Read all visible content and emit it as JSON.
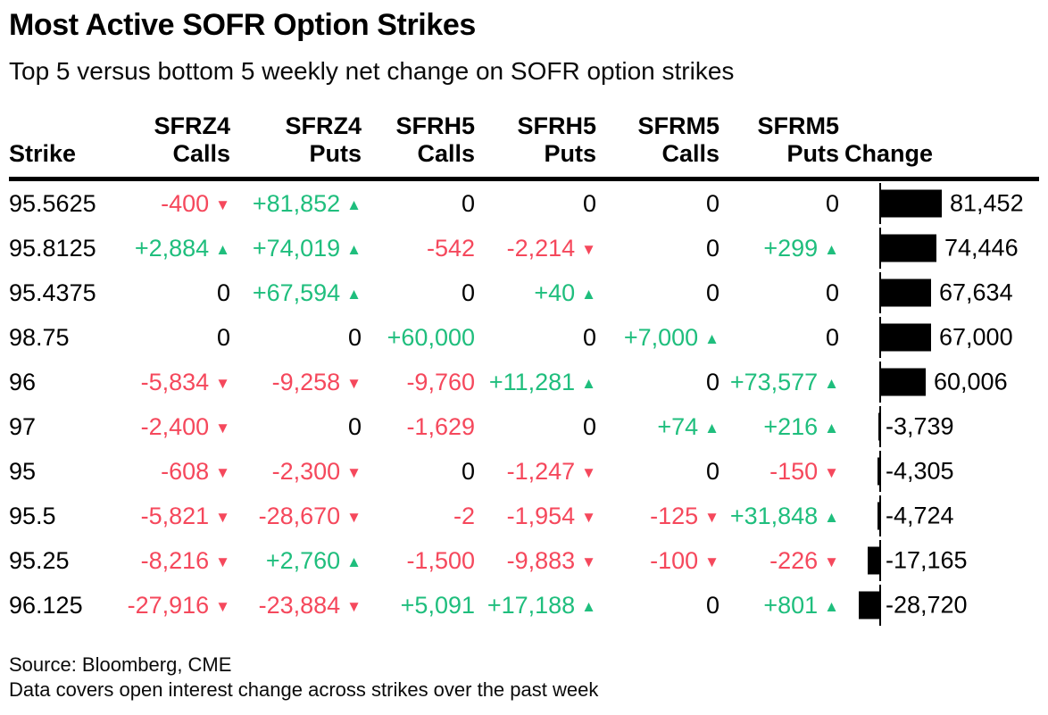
{
  "title": "Most Active SOFR Option Strikes",
  "subtitle": "Top 5 versus bottom 5 weekly net change on SOFR option strikes",
  "header": {
    "strike": "Strike",
    "change": "Change",
    "contracts": [
      {
        "symbol": "SFRZ4",
        "type": "Calls"
      },
      {
        "symbol": "SFRZ4",
        "type": "Puts"
      },
      {
        "symbol": "SFRH5",
        "type": "Calls"
      },
      {
        "symbol": "SFRH5",
        "type": "Puts"
      },
      {
        "symbol": "SFRM5",
        "type": "Calls"
      },
      {
        "symbol": "SFRM5",
        "type": "Puts"
      }
    ]
  },
  "colors": {
    "positive": "#1FBE7D",
    "negative": "#F5485C",
    "neutral": "#000000",
    "bar": "#000000"
  },
  "arrows": {
    "up": "▲",
    "down": "▼"
  },
  "rows": [
    {
      "strike": "95.5625",
      "cells": [
        {
          "v": "-400",
          "arrow": "down"
        },
        {
          "v": "+81,852",
          "arrow": "up"
        },
        {
          "v": "0"
        },
        {
          "v": "0"
        },
        {
          "v": "0"
        },
        {
          "v": "0"
        }
      ],
      "change": 81452,
      "change_label": "81,452"
    },
    {
      "strike": "95.8125",
      "cells": [
        {
          "v": "+2,884",
          "arrow": "up"
        },
        {
          "v": "+74,019",
          "arrow": "up"
        },
        {
          "v": "-542"
        },
        {
          "v": "-2,214",
          "arrow": "down"
        },
        {
          "v": "0"
        },
        {
          "v": "+299",
          "arrow": "up"
        }
      ],
      "change": 74446,
      "change_label": "74,446"
    },
    {
      "strike": "95.4375",
      "cells": [
        {
          "v": "0"
        },
        {
          "v": "+67,594",
          "arrow": "up"
        },
        {
          "v": "0"
        },
        {
          "v": "+40",
          "arrow": "up"
        },
        {
          "v": "0"
        },
        {
          "v": "0"
        }
      ],
      "change": 67634,
      "change_label": "67,634"
    },
    {
      "strike": "98.75",
      "cells": [
        {
          "v": "0"
        },
        {
          "v": "0"
        },
        {
          "v": "+60,000"
        },
        {
          "v": "0"
        },
        {
          "v": "+7,000",
          "arrow": "up"
        },
        {
          "v": "0"
        }
      ],
      "change": 67000,
      "change_label": "67,000"
    },
    {
      "strike": "96",
      "cells": [
        {
          "v": "-5,834",
          "arrow": "down"
        },
        {
          "v": "-9,258",
          "arrow": "down"
        },
        {
          "v": "-9,760"
        },
        {
          "v": "+11,281",
          "arrow": "up"
        },
        {
          "v": "0"
        },
        {
          "v": "+73,577",
          "arrow": "up"
        }
      ],
      "change": 60006,
      "change_label": "60,006"
    },
    {
      "strike": "97",
      "cells": [
        {
          "v": "-2,400",
          "arrow": "down"
        },
        {
          "v": "0"
        },
        {
          "v": "-1,629"
        },
        {
          "v": "0"
        },
        {
          "v": "+74",
          "arrow": "up"
        },
        {
          "v": "+216",
          "arrow": "up"
        }
      ],
      "change": -3739,
      "change_label": "-3,739"
    },
    {
      "strike": "95",
      "cells": [
        {
          "v": "-608",
          "arrow": "down"
        },
        {
          "v": "-2,300",
          "arrow": "down"
        },
        {
          "v": "0"
        },
        {
          "v": "-1,247",
          "arrow": "down"
        },
        {
          "v": "0"
        },
        {
          "v": "-150",
          "arrow": "down"
        }
      ],
      "change": -4305,
      "change_label": "-4,305"
    },
    {
      "strike": "95.5",
      "cells": [
        {
          "v": "-5,821",
          "arrow": "down"
        },
        {
          "v": "-28,670",
          "arrow": "down"
        },
        {
          "v": "-2"
        },
        {
          "v": "-1,954",
          "arrow": "down"
        },
        {
          "v": "-125",
          "arrow": "down"
        },
        {
          "v": "+31,848",
          "arrow": "up"
        }
      ],
      "change": -4724,
      "change_label": "-4,724"
    },
    {
      "strike": "95.25",
      "cells": [
        {
          "v": "-8,216",
          "arrow": "down"
        },
        {
          "v": "+2,760",
          "arrow": "up"
        },
        {
          "v": "-1,500"
        },
        {
          "v": "-9,883",
          "arrow": "down"
        },
        {
          "v": "-100",
          "arrow": "down"
        },
        {
          "v": "-226",
          "arrow": "down"
        }
      ],
      "change": -17165,
      "change_label": "-17,165"
    },
    {
      "strike": "96.125",
      "cells": [
        {
          "v": "-27,916",
          "arrow": "down"
        },
        {
          "v": "-23,884",
          "arrow": "down"
        },
        {
          "v": "+5,091"
        },
        {
          "v": "+17,188",
          "arrow": "up"
        },
        {
          "v": "0"
        },
        {
          "v": "+801",
          "arrow": "up"
        }
      ],
      "change": -28720,
      "change_label": "-28,720"
    }
  ],
  "footer": {
    "source": "Source: Bloomberg, CME",
    "note": "Data covers open interest change across strikes over the past week"
  },
  "chart_data": {
    "type": "table",
    "title": "Most Active SOFR Option Strikes",
    "subtitle": "Top 5 versus bottom 5 weekly net change on SOFR option strikes",
    "columns": [
      "Strike",
      "SFRZ4 Calls",
      "SFRZ4 Puts",
      "SFRH5 Calls",
      "SFRH5 Puts",
      "SFRM5 Calls",
      "SFRM5 Puts",
      "Change"
    ],
    "rows": [
      [
        "95.5625",
        -400,
        81852,
        0,
        0,
        0,
        0,
        81452
      ],
      [
        "95.8125",
        2884,
        74019,
        -542,
        -2214,
        0,
        299,
        74446
      ],
      [
        "95.4375",
        0,
        67594,
        0,
        40,
        0,
        0,
        67634
      ],
      [
        "98.75",
        0,
        0,
        60000,
        0,
        7000,
        0,
        67000
      ],
      [
        "96",
        -5834,
        -9258,
        -9760,
        11281,
        0,
        73577,
        60006
      ],
      [
        "97",
        -2400,
        0,
        -1629,
        0,
        74,
        216,
        -3739
      ],
      [
        "95",
        -608,
        -2300,
        0,
        -1247,
        0,
        -150,
        -4305
      ],
      [
        "95.5",
        -5821,
        -28670,
        -2,
        -1954,
        -125,
        31848,
        -4724
      ],
      [
        "95.25",
        -8216,
        2760,
        -1500,
        -9883,
        -100,
        -226,
        -17165
      ],
      [
        "96.125",
        -27916,
        -23884,
        5091,
        17188,
        0,
        801,
        -28720
      ]
    ],
    "bar_column": "Change",
    "bar_color": "#000000",
    "bar_axis_max": 81452,
    "notes": [
      "Source: Bloomberg, CME",
      "Data covers open interest change across strikes over the past week"
    ]
  }
}
